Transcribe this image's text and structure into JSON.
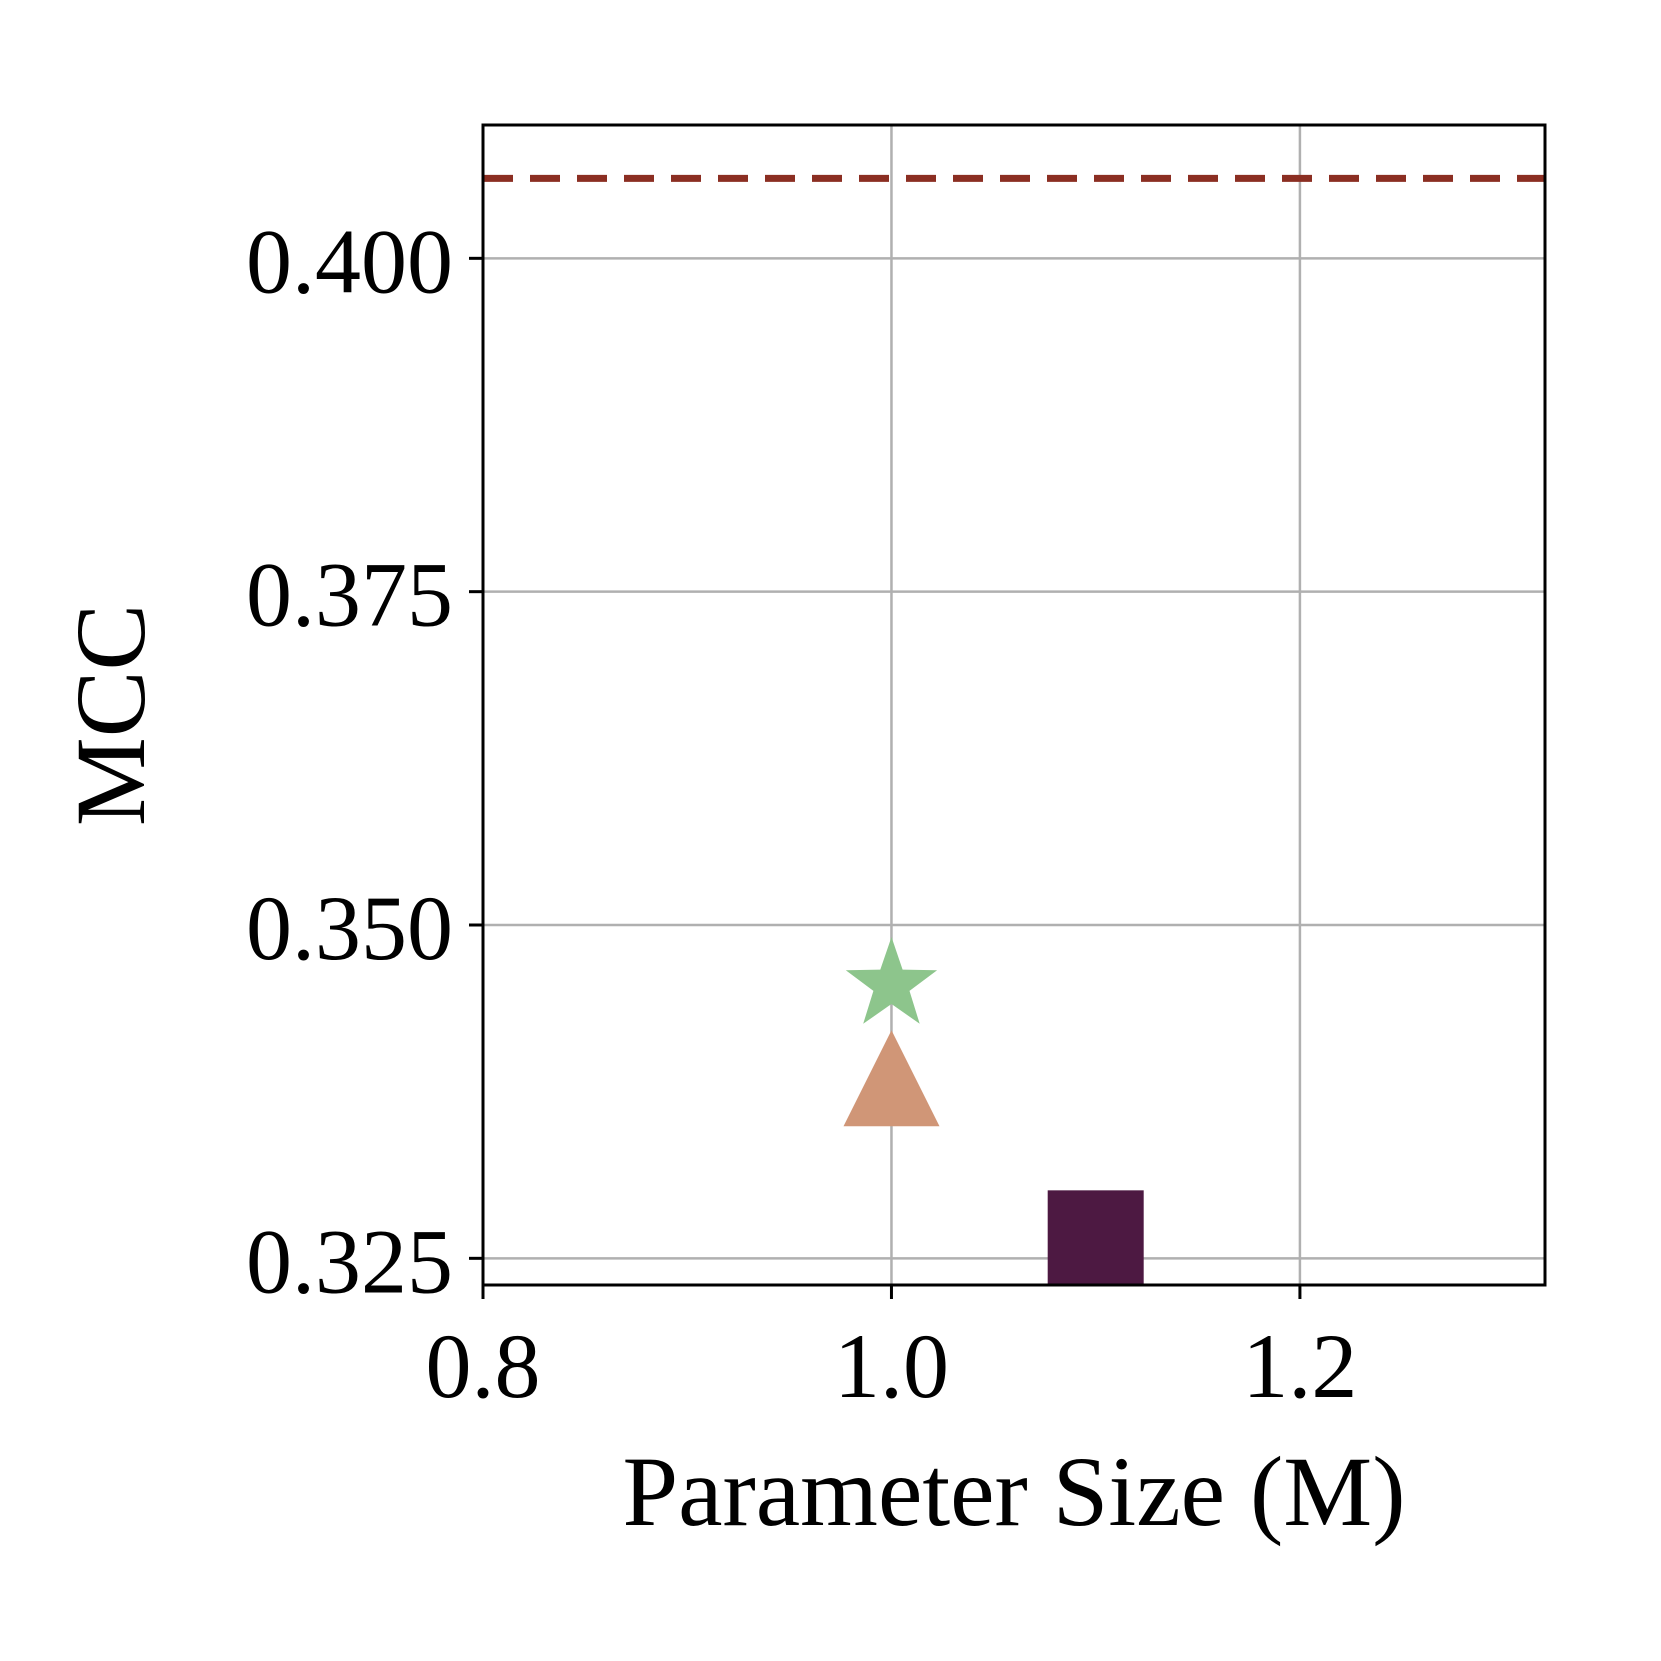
{
  "chart_data": {
    "type": "scatter",
    "xlabel": "Parameter Size (M)",
    "ylabel": "MCC",
    "xlim": [
      0.8,
      1.32
    ],
    "ylim": [
      0.323,
      0.41
    ],
    "xticks": [
      {
        "value": 0.8,
        "label": "0.8"
      },
      {
        "value": 1.0,
        "label": "1.0"
      },
      {
        "value": 1.2,
        "label": "1.2"
      }
    ],
    "yticks": [
      {
        "value": 0.325,
        "label": "0.325"
      },
      {
        "value": 0.35,
        "label": "0.350"
      },
      {
        "value": 0.375,
        "label": "0.375"
      },
      {
        "value": 0.4,
        "label": "0.400"
      }
    ],
    "grid": true,
    "reference_line": {
      "y": 0.406,
      "style": "dashed",
      "color": "#8b2e22"
    },
    "points": [
      {
        "x": 1.0,
        "y": 0.3455,
        "marker": "star",
        "color": "#8dc58c"
      },
      {
        "x": 1.0,
        "y": 0.3385,
        "marker": "triangle",
        "color": "#d09677"
      },
      {
        "x": 1.1,
        "y": 0.3265,
        "marker": "square",
        "color": "#4d1942"
      }
    ]
  }
}
